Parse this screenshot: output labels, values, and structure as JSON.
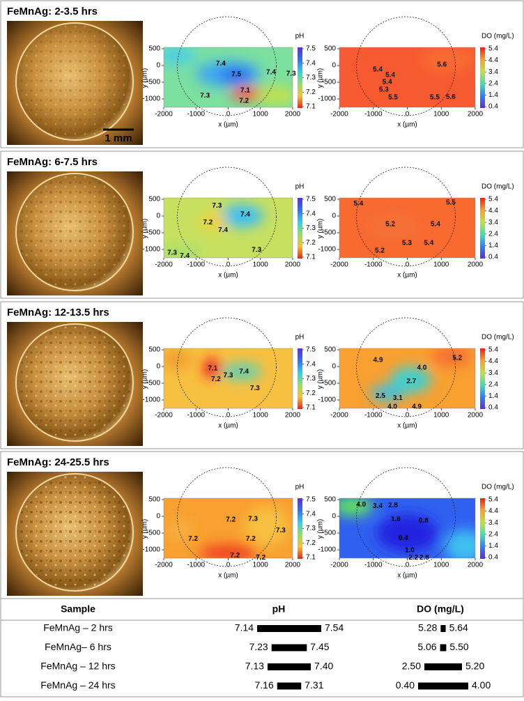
{
  "panels": [
    {
      "title": "FeMnAg: 2-3.5 hrs",
      "ph_labels": [
        {
          "text": "7.4",
          "x": -230,
          "y": 60
        },
        {
          "text": "7.5",
          "x": 250,
          "y": -270
        },
        {
          "text": "7.4",
          "x": 1330,
          "y": -210
        },
        {
          "text": "7.3",
          "x": 1950,
          "y": -250
        },
        {
          "text": "7.1",
          "x": 530,
          "y": -750
        },
        {
          "text": "7.2",
          "x": 490,
          "y": -1060
        },
        {
          "text": "7.3",
          "x": -720,
          "y": -900
        }
      ],
      "do_labels": [
        {
          "text": "5.4",
          "x": -870,
          "y": -125
        },
        {
          "text": "5.4",
          "x": -500,
          "y": -290
        },
        {
          "text": "5.4",
          "x": -590,
          "y": -500
        },
        {
          "text": "5.3",
          "x": -690,
          "y": -730
        },
        {
          "text": "5.5",
          "x": -420,
          "y": -960
        },
        {
          "text": "5.6",
          "x": 1020,
          "y": 20
        },
        {
          "text": "5.5",
          "x": 810,
          "y": -960
        },
        {
          "text": "5.6",
          "x": 1280,
          "y": -940
        }
      ]
    },
    {
      "title": "FeMnAg: 6-7.5 hrs",
      "ph_labels": [
        {
          "text": "7.3",
          "x": -350,
          "y": 310
        },
        {
          "text": "7.2",
          "x": -630,
          "y": -190
        },
        {
          "text": "7.4",
          "x": -160,
          "y": -420
        },
        {
          "text": "7.4",
          "x": 530,
          "y": 40
        },
        {
          "text": "7.3",
          "x": -1740,
          "y": -1100
        },
        {
          "text": "7.4",
          "x": -1350,
          "y": -1190
        },
        {
          "text": "7.3",
          "x": 880,
          "y": -1020
        }
      ],
      "do_labels": [
        {
          "text": "5.4",
          "x": -1440,
          "y": 370
        },
        {
          "text": "5.5",
          "x": 1280,
          "y": 400
        },
        {
          "text": "5.2",
          "x": -500,
          "y": -250
        },
        {
          "text": "5.4",
          "x": 830,
          "y": -250
        },
        {
          "text": "5.3",
          "x": -10,
          "y": -810
        },
        {
          "text": "5.4",
          "x": 630,
          "y": -810
        },
        {
          "text": "5.2",
          "x": -810,
          "y": -1040
        }
      ]
    },
    {
      "title": "FeMnAg: 12-13.5 hrs",
      "ph_labels": [
        {
          "text": "7.1",
          "x": -480,
          "y": -60
        },
        {
          "text": "7.2",
          "x": -380,
          "y": -380
        },
        {
          "text": "7.3",
          "x": 0,
          "y": -270
        },
        {
          "text": "7.4",
          "x": 490,
          "y": -150
        },
        {
          "text": "7.3",
          "x": 830,
          "y": -650
        }
      ],
      "do_labels": [
        {
          "text": "4.9",
          "x": -860,
          "y": 190
        },
        {
          "text": "4.0",
          "x": 430,
          "y": -40
        },
        {
          "text": "2.7",
          "x": 120,
          "y": -440
        },
        {
          "text": "5.2",
          "x": 1470,
          "y": 250
        },
        {
          "text": "2.5",
          "x": -790,
          "y": -880
        },
        {
          "text": "3.1",
          "x": -280,
          "y": -940
        },
        {
          "text": "4.0",
          "x": -440,
          "y": -1210
        },
        {
          "text": "4.9",
          "x": 280,
          "y": -1210
        }
      ]
    },
    {
      "title": "FeMnAg: 24-25.5 hrs",
      "ph_labels": [
        {
          "text": "7.2",
          "x": 80,
          "y": -100
        },
        {
          "text": "7.3",
          "x": 770,
          "y": -80
        },
        {
          "text": "7.3",
          "x": 1630,
          "y": -420
        },
        {
          "text": "7.2",
          "x": -1090,
          "y": -670
        },
        {
          "text": "7.2",
          "x": 700,
          "y": -670
        },
        {
          "text": "7.2",
          "x": 210,
          "y": -1170
        },
        {
          "text": "7.2",
          "x": 1010,
          "y": -1240
        }
      ],
      "do_labels": [
        {
          "text": "4.0",
          "x": -1360,
          "y": 350
        },
        {
          "text": "3.4",
          "x": -870,
          "y": 310
        },
        {
          "text": "2.8",
          "x": -420,
          "y": 330
        },
        {
          "text": "1.6",
          "x": -340,
          "y": -90
        },
        {
          "text": "0.8",
          "x": 480,
          "y": -130
        },
        {
          "text": "0.4",
          "x": -120,
          "y": -650
        },
        {
          "text": "1.0",
          "x": 70,
          "y": -1020
        },
        {
          "text": "2.2",
          "x": 180,
          "y": -1240
        },
        {
          "text": "2.8",
          "x": 500,
          "y": -1240
        }
      ]
    }
  ],
  "scale_bar": "1 mm",
  "axes": {
    "x_label": "x (µm)",
    "y_label": "y (µm)",
    "xlim": [
      -2000,
      2000
    ],
    "ylim": [
      -1250,
      500
    ],
    "xticks": [
      -2000,
      -1000,
      0,
      1000,
      2000
    ],
    "yticks": [
      500,
      0,
      -500,
      -1000
    ]
  },
  "ph_colorbar": {
    "label": "pH",
    "lim": [
      7.1,
      7.5
    ],
    "ticks": [
      7.5,
      7.4,
      7.3,
      7.2,
      7.1
    ]
  },
  "do_colorbar": {
    "label": "DO (mg/L)",
    "lim": [
      0.4,
      5.4
    ],
    "ticks": [
      5.4,
      4.4,
      3.4,
      2.4,
      1.4,
      0.4
    ]
  },
  "table": {
    "headers": [
      "Sample",
      "pH",
      "DO (mg/L)"
    ],
    "rows": [
      [
        "FeMnAg – 2 hrs",
        "7.14",
        "7.54",
        "5.28",
        "5.64"
      ],
      [
        "FeMnAg– 6 hrs",
        "7.23",
        "7.45",
        "5.06",
        "5.50"
      ],
      [
        "FeMnAg – 12 hrs",
        "7.13",
        "7.40",
        "2.50",
        "5.20"
      ],
      [
        "FeMnAg – 24 hrs",
        "7.16",
        "7.31",
        "0.40",
        "4.00"
      ]
    ]
  }
}
